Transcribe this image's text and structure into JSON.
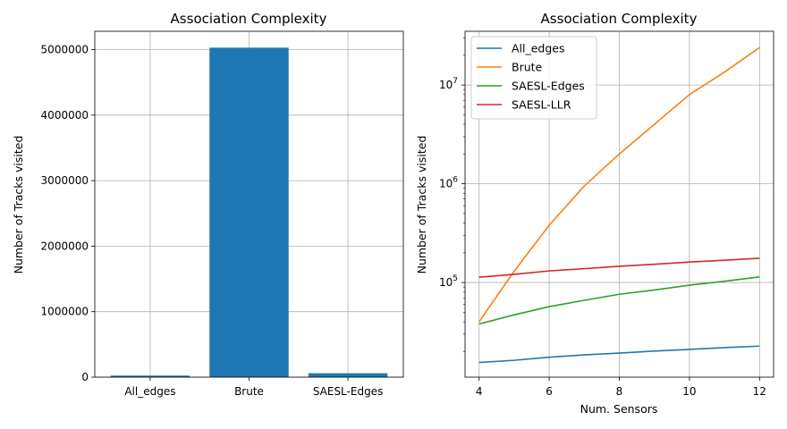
{
  "chart_data": [
    {
      "type": "bar",
      "title": "Association Complexity",
      "xlabel": "",
      "ylabel": "Number of Tracks visited",
      "categories": [
        "All_edges",
        "Brute",
        "SAESL-Edges"
      ],
      "values": [
        24000,
        5030000,
        60000
      ],
      "ylim": [
        0,
        5280000
      ],
      "yticks": [
        0,
        1000000,
        2000000,
        3000000,
        4000000,
        5000000
      ],
      "ytick_labels": [
        "0",
        "1000000",
        "2000000",
        "3000000",
        "4000000",
        "5000000"
      ],
      "bar_color": "#1f77b4",
      "grid": true
    },
    {
      "type": "line",
      "title": "Association Complexity",
      "xlabel": "Num. Sensors",
      "ylabel": "Number of Tracks visited",
      "yscale": "log",
      "xlim": [
        3.6,
        12.4
      ],
      "ylim": [
        11000,
        35000000
      ],
      "xticks": [
        4,
        6,
        8,
        10,
        12
      ],
      "xtick_labels": [
        "4",
        "6",
        "8",
        "10",
        "12"
      ],
      "yticks": [
        100000,
        1000000,
        10000000
      ],
      "legend_position": "top-left",
      "grid": true,
      "series": [
        {
          "name": "All_edges",
          "color": "#1f77b4",
          "x": [
            4,
            5,
            6,
            7,
            8,
            9,
            10,
            11,
            12
          ],
          "values": [
            15500,
            16300,
            17500,
            18500,
            19300,
            20200,
            21000,
            21900,
            22700
          ]
        },
        {
          "name": "Brute",
          "color": "#ff7f0e",
          "x": [
            4,
            5,
            6,
            7,
            8,
            9,
            10,
            11,
            12
          ],
          "values": [
            40000,
            130000,
            380000,
            950000,
            2000000,
            4000000,
            8000000,
            13500000,
            24000000
          ]
        },
        {
          "name": "SAESL-Edges",
          "color": "#2ca02c",
          "x": [
            4,
            5,
            6,
            7,
            8,
            9,
            10,
            11,
            12
          ],
          "values": [
            38000,
            47000,
            57000,
            66000,
            76000,
            84000,
            94000,
            103000,
            114000
          ]
        },
        {
          "name": "SAESL-LLR",
          "color": "#d62728",
          "x": [
            4,
            5,
            6,
            7,
            8,
            9,
            10,
            11,
            12
          ],
          "values": [
            113000,
            121000,
            131000,
            138000,
            146000,
            153000,
            161000,
            168000,
            176000
          ]
        }
      ]
    }
  ]
}
